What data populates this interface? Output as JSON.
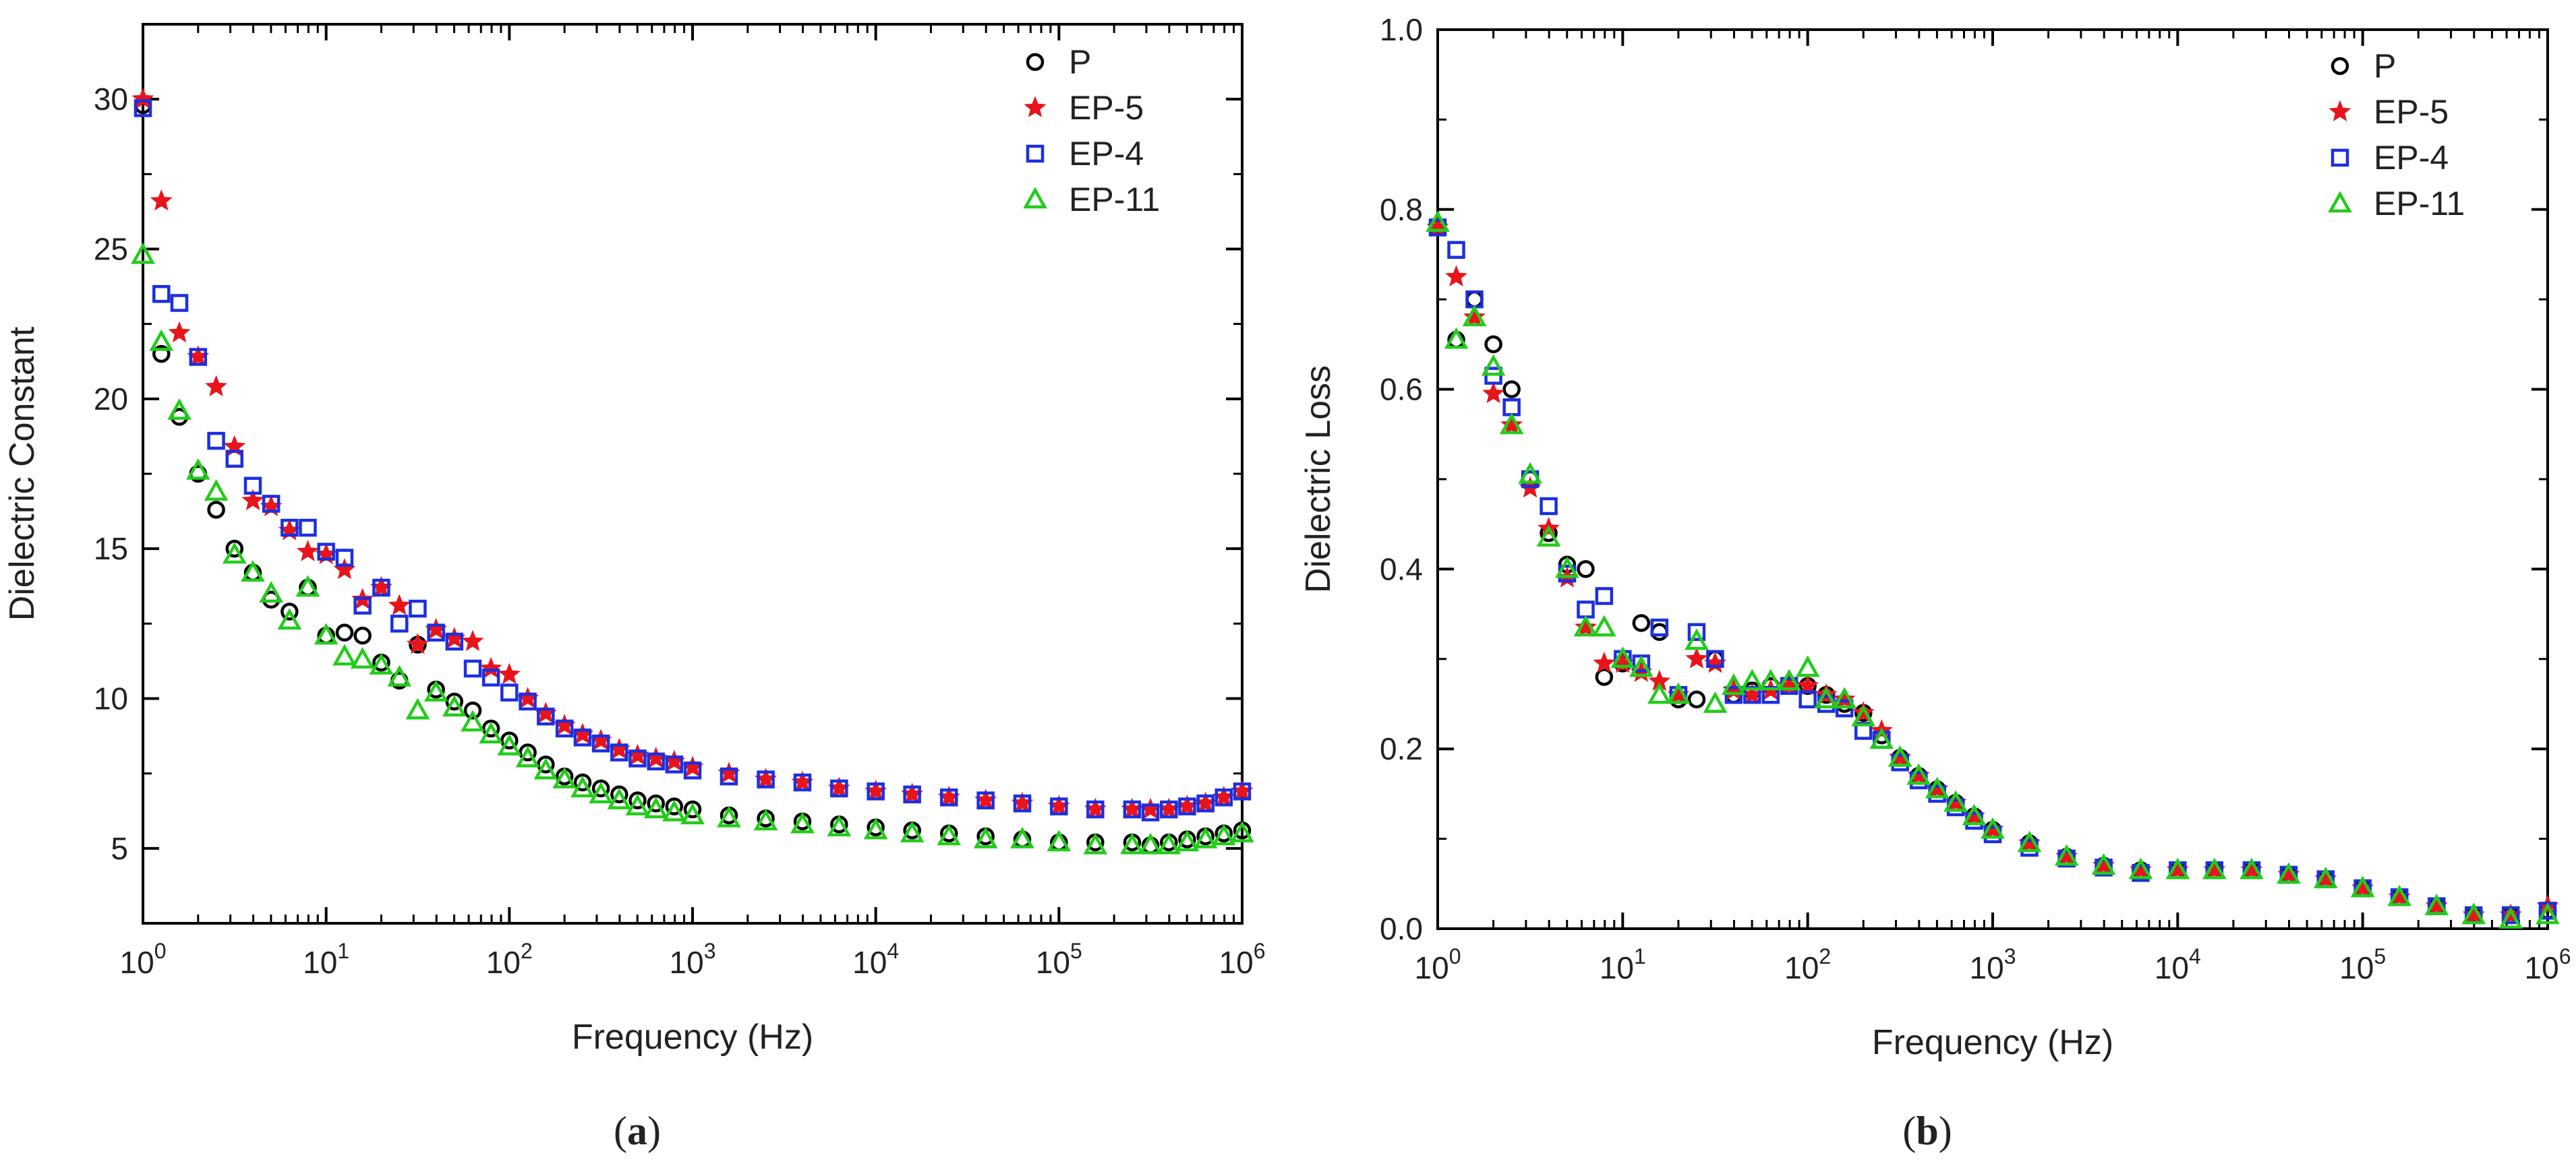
{
  "chart_data": [
    {
      "type": "scatter",
      "panel_label": "(a)",
      "xlabel": "Frequency (Hz)",
      "ylabel": "Dielectric Constant",
      "xscale": "log",
      "xlim": [
        1,
        1000000
      ],
      "ylim": [
        2.5,
        32.5
      ],
      "xticks": [
        {
          "value": 1,
          "label": "10",
          "exp": "0"
        },
        {
          "value": 10,
          "label": "10",
          "exp": "1"
        },
        {
          "value": 100,
          "label": "10",
          "exp": "2"
        },
        {
          "value": 1000,
          "label": "10",
          "exp": "3"
        },
        {
          "value": 10000,
          "label": "10",
          "exp": "4"
        },
        {
          "value": 100000,
          "label": "10",
          "exp": "5"
        },
        {
          "value": 1000000,
          "label": "10",
          "exp": "6"
        }
      ],
      "yticks": [
        {
          "value": 5,
          "label": "5"
        },
        {
          "value": 10,
          "label": "10"
        },
        {
          "value": 15,
          "label": "15"
        },
        {
          "value": 20,
          "label": "20"
        },
        {
          "value": 25,
          "label": "25"
        },
        {
          "value": 30,
          "label": "30"
        }
      ],
      "legend_position": "top-right",
      "series": [
        {
          "name": "P",
          "marker": "circle",
          "color": "#000000",
          "x": [
            1,
            1.26,
            1.58,
            2,
            2.51,
            3.16,
            3.98,
            5.01,
            6.31,
            7.94,
            10,
            12.6,
            15.8,
            20,
            25.1,
            31.6,
            39.8,
            50.1,
            63.1,
            79.4,
            100,
            126,
            158,
            200,
            251,
            316,
            398,
            501,
            631,
            794,
            1000,
            1580,
            2510,
            3980,
            6310,
            10000,
            15800,
            25100,
            39800,
            63100,
            100000,
            158000,
            251000,
            316000,
            398000,
            501000,
            631000,
            794000,
            1000000
          ],
          "y": [
            29.8,
            21.5,
            19.4,
            17.5,
            16.3,
            15.0,
            14.2,
            13.3,
            12.9,
            13.7,
            12.1,
            12.2,
            12.1,
            11.2,
            10.6,
            11.8,
            10.3,
            9.9,
            9.6,
            9.0,
            8.6,
            8.2,
            7.8,
            7.4,
            7.2,
            7.0,
            6.8,
            6.6,
            6.5,
            6.4,
            6.3,
            6.1,
            6.0,
            5.9,
            5.8,
            5.7,
            5.6,
            5.5,
            5.4,
            5.3,
            5.2,
            5.2,
            5.2,
            5.1,
            5.2,
            5.3,
            5.4,
            5.5,
            5.6
          ]
        },
        {
          "name": "EP-5",
          "marker": "star",
          "color": "#e8141c",
          "x": [
            1,
            1.26,
            1.58,
            2,
            2.51,
            3.16,
            3.98,
            5.01,
            6.31,
            7.94,
            10,
            12.6,
            15.8,
            20,
            25.1,
            31.6,
            39.8,
            50.1,
            63.1,
            79.4,
            100,
            126,
            158,
            200,
            251,
            316,
            398,
            501,
            631,
            794,
            1000,
            1580,
            2510,
            3980,
            6310,
            10000,
            15800,
            25100,
            39800,
            63100,
            100000,
            158000,
            251000,
            316000,
            398000,
            501000,
            631000,
            794000,
            1000000
          ],
          "y": [
            30.0,
            26.6,
            22.2,
            21.4,
            20.4,
            18.4,
            16.6,
            16.4,
            15.6,
            14.9,
            14.8,
            14.3,
            13.3,
            13.7,
            13.1,
            11.8,
            12.3,
            12.0,
            11.9,
            11.0,
            10.8,
            10.0,
            9.5,
            9.1,
            8.8,
            8.6,
            8.3,
            8.1,
            8.0,
            7.9,
            7.7,
            7.5,
            7.3,
            7.2,
            7.0,
            6.9,
            6.8,
            6.7,
            6.6,
            6.5,
            6.4,
            6.3,
            6.3,
            6.3,
            6.3,
            6.4,
            6.5,
            6.7,
            6.9
          ]
        },
        {
          "name": "EP-4",
          "marker": "square",
          "color": "#1c2fe0",
          "x": [
            1,
            1.26,
            1.58,
            2,
            2.51,
            3.16,
            3.98,
            5.01,
            6.31,
            7.94,
            10,
            12.6,
            15.8,
            20,
            25.1,
            31.6,
            39.8,
            50.1,
            63.1,
            79.4,
            100,
            126,
            158,
            200,
            251,
            316,
            398,
            501,
            631,
            794,
            1000,
            1580,
            2510,
            3980,
            6310,
            10000,
            15800,
            25100,
            39800,
            63100,
            100000,
            158000,
            251000,
            316000,
            398000,
            501000,
            631000,
            794000,
            1000000
          ],
          "y": [
            29.7,
            23.5,
            23.2,
            21.4,
            18.6,
            18.0,
            17.1,
            16.5,
            15.7,
            15.7,
            14.9,
            14.7,
            13.1,
            13.7,
            12.5,
            13.0,
            12.2,
            11.9,
            11.0,
            10.7,
            10.2,
            9.9,
            9.4,
            9.0,
            8.7,
            8.5,
            8.2,
            8.0,
            7.9,
            7.8,
            7.6,
            7.4,
            7.3,
            7.2,
            7.0,
            6.9,
            6.8,
            6.7,
            6.6,
            6.5,
            6.4,
            6.3,
            6.3,
            6.2,
            6.3,
            6.4,
            6.5,
            6.7,
            6.9
          ]
        },
        {
          "name": "EP-11",
          "marker": "triangle",
          "color": "#22cc1a",
          "x": [
            1,
            1.26,
            1.58,
            2,
            2.51,
            3.16,
            3.98,
            5.01,
            6.31,
            7.94,
            10,
            12.6,
            15.8,
            20,
            25.1,
            31.6,
            39.8,
            50.1,
            63.1,
            79.4,
            100,
            126,
            158,
            200,
            251,
            316,
            398,
            501,
            631,
            794,
            1000,
            1580,
            2510,
            3980,
            6310,
            10000,
            15800,
            25100,
            39800,
            63100,
            100000,
            158000,
            251000,
            316000,
            398000,
            501000,
            631000,
            794000,
            1000000
          ],
          "y": [
            24.8,
            21.9,
            19.6,
            17.6,
            16.9,
            14.8,
            14.2,
            13.5,
            12.6,
            13.7,
            12.1,
            11.4,
            11.3,
            11.1,
            10.7,
            9.6,
            10.2,
            9.7,
            9.2,
            8.8,
            8.4,
            8.0,
            7.6,
            7.3,
            7.0,
            6.8,
            6.6,
            6.4,
            6.3,
            6.2,
            6.1,
            6.0,
            5.9,
            5.8,
            5.7,
            5.6,
            5.5,
            5.4,
            5.3,
            5.3,
            5.2,
            5.1,
            5.1,
            5.1,
            5.1,
            5.2,
            5.3,
            5.4,
            5.5
          ]
        }
      ]
    },
    {
      "type": "scatter",
      "panel_label": "(b)",
      "xlabel": "Frequency (Hz)",
      "ylabel": "Dielectric Loss",
      "xscale": "log",
      "xlim": [
        1,
        1000000
      ],
      "ylim": [
        0.0,
        1.0
      ],
      "xticks": [
        {
          "value": 1,
          "label": "10",
          "exp": "0"
        },
        {
          "value": 10,
          "label": "10",
          "exp": "1"
        },
        {
          "value": 100,
          "label": "10",
          "exp": "2"
        },
        {
          "value": 1000,
          "label": "10",
          "exp": "3"
        },
        {
          "value": 10000,
          "label": "10",
          "exp": "4"
        },
        {
          "value": 100000,
          "label": "10",
          "exp": "5"
        },
        {
          "value": 1000000,
          "label": "10",
          "exp": "6"
        }
      ],
      "yticks": [
        {
          "value": 0.0,
          "label": "0.0"
        },
        {
          "value": 0.2,
          "label": "0.2"
        },
        {
          "value": 0.4,
          "label": "0.4"
        },
        {
          "value": 0.6,
          "label": "0.6"
        },
        {
          "value": 0.8,
          "label": "0.8"
        },
        {
          "value": 1.0,
          "label": "1.0"
        }
      ],
      "legend_position": "top-right",
      "series": [
        {
          "name": "P",
          "marker": "circle",
          "color": "#000000",
          "x": [
            1,
            1.26,
            1.58,
            2,
            2.51,
            3.16,
            3.98,
            5.01,
            6.31,
            7.94,
            10,
            12.6,
            15.8,
            20,
            25.1,
            31.6,
            39.8,
            50.1,
            63.1,
            79.4,
            100,
            126,
            158,
            200,
            251,
            316,
            398,
            501,
            631,
            794,
            1000,
            1580,
            2510,
            3980,
            6310,
            10000,
            15800,
            25100,
            39800,
            63100,
            100000,
            158000,
            251000,
            398000,
            631000,
            1000000
          ],
          "y": [
            0.78,
            0.655,
            0.7,
            0.65,
            0.6,
            0.5,
            0.44,
            0.405,
            0.4,
            0.28,
            0.295,
            0.34,
            0.33,
            0.255,
            0.255,
            0.3,
            0.26,
            0.265,
            0.27,
            0.27,
            0.27,
            0.26,
            0.25,
            0.24,
            0.215,
            0.19,
            0.17,
            0.155,
            0.14,
            0.125,
            0.11,
            0.095,
            0.08,
            0.07,
            0.065,
            0.065,
            0.065,
            0.065,
            0.06,
            0.055,
            0.045,
            0.035,
            0.025,
            0.015,
            0.015,
            0.02
          ]
        },
        {
          "name": "EP-5",
          "marker": "star",
          "color": "#e8141c",
          "x": [
            1,
            1.26,
            1.58,
            2,
            2.51,
            3.16,
            3.98,
            5.01,
            6.31,
            7.94,
            10,
            12.6,
            15.8,
            20,
            25.1,
            31.6,
            39.8,
            50.1,
            63.1,
            79.4,
            100,
            126,
            158,
            200,
            251,
            316,
            398,
            501,
            631,
            794,
            1000,
            1580,
            2510,
            3980,
            6310,
            10000,
            15800,
            25100,
            39800,
            63100,
            100000,
            158000,
            251000,
            398000,
            631000,
            1000000
          ],
          "y": [
            0.78,
            0.725,
            0.68,
            0.595,
            0.56,
            0.49,
            0.445,
            0.39,
            0.335,
            0.295,
            0.295,
            0.285,
            0.275,
            0.26,
            0.3,
            0.295,
            0.265,
            0.26,
            0.265,
            0.27,
            0.27,
            0.26,
            0.255,
            0.24,
            0.22,
            0.19,
            0.17,
            0.155,
            0.14,
            0.125,
            0.11,
            0.095,
            0.08,
            0.07,
            0.065,
            0.065,
            0.065,
            0.065,
            0.06,
            0.055,
            0.045,
            0.035,
            0.025,
            0.015,
            0.015,
            0.025
          ]
        },
        {
          "name": "EP-4",
          "marker": "square",
          "color": "#1c2fe0",
          "x": [
            1,
            1.26,
            1.58,
            2,
            2.51,
            3.16,
            3.98,
            5.01,
            6.31,
            7.94,
            10,
            12.6,
            15.8,
            20,
            25.1,
            31.6,
            39.8,
            50.1,
            63.1,
            79.4,
            100,
            126,
            158,
            200,
            251,
            316,
            398,
            501,
            631,
            794,
            1000,
            1580,
            2510,
            3980,
            6310,
            10000,
            15800,
            25100,
            39800,
            63100,
            100000,
            158000,
            251000,
            398000,
            631000,
            1000000
          ],
          "y": [
            0.78,
            0.755,
            0.7,
            0.615,
            0.58,
            0.5,
            0.47,
            0.395,
            0.355,
            0.37,
            0.3,
            0.295,
            0.335,
            0.26,
            0.33,
            0.3,
            0.26,
            0.26,
            0.26,
            0.27,
            0.255,
            0.25,
            0.245,
            0.22,
            0.21,
            0.185,
            0.165,
            0.15,
            0.135,
            0.12,
            0.105,
            0.09,
            0.078,
            0.068,
            0.062,
            0.065,
            0.065,
            0.065,
            0.06,
            0.055,
            0.045,
            0.035,
            0.025,
            0.015,
            0.015,
            0.02
          ]
        },
        {
          "name": "EP-11",
          "marker": "triangle",
          "color": "#22cc1a",
          "x": [
            1,
            1.26,
            1.58,
            2,
            2.51,
            3.16,
            3.98,
            5.01,
            6.31,
            7.94,
            10,
            12.6,
            15.8,
            20,
            25.1,
            31.6,
            39.8,
            50.1,
            63.1,
            79.4,
            100,
            126,
            158,
            200,
            251,
            316,
            398,
            501,
            631,
            794,
            1000,
            1580,
            2510,
            3980,
            6310,
            10000,
            15800,
            25100,
            39800,
            63100,
            100000,
            158000,
            251000,
            398000,
            631000,
            1000000
          ],
          "y": [
            0.785,
            0.655,
            0.68,
            0.625,
            0.56,
            0.505,
            0.435,
            0.4,
            0.335,
            0.335,
            0.3,
            0.29,
            0.26,
            0.26,
            0.32,
            0.25,
            0.27,
            0.275,
            0.275,
            0.275,
            0.29,
            0.255,
            0.255,
            0.235,
            0.21,
            0.19,
            0.17,
            0.155,
            0.14,
            0.125,
            0.11,
            0.095,
            0.08,
            0.07,
            0.065,
            0.065,
            0.065,
            0.065,
            0.06,
            0.055,
            0.045,
            0.035,
            0.025,
            0.015,
            0.01,
            0.015
          ]
        }
      ]
    }
  ]
}
